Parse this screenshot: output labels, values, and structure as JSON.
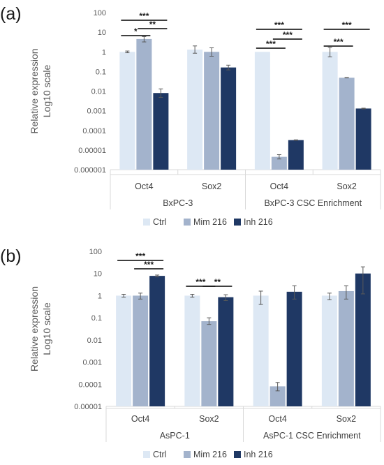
{
  "colors": {
    "ctrl": "#dde8f4",
    "mim": "#a3b3cc",
    "inh": "#1f3864",
    "axis": "#d9d9d9",
    "err": "#595959"
  },
  "chart_data": [
    {
      "panel": "(a)",
      "type": "bar",
      "log_scale": true,
      "ylabel": [
        "Relative expression",
        "Log10 scale"
      ],
      "ylim": [
        1e-06,
        100
      ],
      "yticks": [
        "100",
        "10",
        "1",
        "0.1",
        "0.01",
        "0.001",
        "0.0001",
        "0.00001",
        "0.000001"
      ],
      "categories": [
        "Oct4",
        "Sox2",
        "Oct4",
        "Sox2"
      ],
      "groups": [
        "BxPC-3",
        "BxPC-3 CSC Enrichment"
      ],
      "series": [
        {
          "name": "Ctrl",
          "values": [
            1,
            1.3,
            1,
            1
          ],
          "err_low": [
            0.9,
            0.85,
            1,
            0.55
          ],
          "err_high": [
            1.1,
            2.0,
            1,
            1.7
          ]
        },
        {
          "name": "Mim 216",
          "values": [
            4.5,
            1.0,
            4.5e-06,
            0.048
          ],
          "err_low": [
            3.2,
            0.6,
            3.5e-06,
            0.047
          ],
          "err_high": [
            6.0,
            1.6,
            5.8e-06,
            0.049
          ]
        },
        {
          "name": "Inh 216",
          "values": [
            0.008,
            0.16,
            3.2e-05,
            0.0013
          ],
          "err_low": [
            0.0048,
            0.12,
            3.1e-05,
            0.00125
          ],
          "err_high": [
            0.013,
            0.21,
            3.3e-05,
            0.00135
          ]
        }
      ],
      "significance": [
        {
          "label": "***",
          "from": [
            "Oct4",
            "Ctrl"
          ],
          "to": [
            "Oct4",
            "Inh 216"
          ]
        },
        {
          "label": "*",
          "from": [
            "Oct4",
            "Ctrl"
          ],
          "to": [
            "Oct4",
            "Mim 216"
          ]
        },
        {
          "label": "**",
          "from": [
            "Oct4",
            "Mim 216"
          ],
          "to": [
            "Oct4",
            "Inh 216"
          ]
        },
        {
          "label": "***",
          "from": [
            "Oct4 CSC",
            "Ctrl"
          ],
          "to": [
            "Oct4 CSC",
            "Inh 216"
          ]
        },
        {
          "label": "***",
          "from": [
            "Oct4 CSC",
            "Mim 216"
          ],
          "to": [
            "Oct4 CSC",
            "Inh 216"
          ]
        },
        {
          "label": "***",
          "from": [
            "Oct4 CSC",
            "Ctrl"
          ],
          "to": [
            "Oct4 CSC",
            "Mim 216"
          ]
        },
        {
          "label": "***",
          "from": [
            "Sox2 CSC",
            "Ctrl"
          ],
          "to": [
            "Sox2 CSC",
            "Inh 216"
          ]
        },
        {
          "label": "***",
          "from": [
            "Sox2 CSC",
            "Ctrl"
          ],
          "to": [
            "Sox2 CSC",
            "Mim 216"
          ]
        }
      ],
      "legend": [
        "Ctrl",
        "Mim 216",
        "Inh 216"
      ],
      "legend_position": "bottom"
    },
    {
      "panel": "(b)",
      "type": "bar",
      "log_scale": true,
      "ylabel": [
        "Relative expression",
        "Log10 scale"
      ],
      "ylim": [
        1e-05,
        100
      ],
      "yticks": [
        "100",
        "10",
        "1",
        "0.1",
        "0.01",
        "0.001",
        "0.0001",
        "0.00001"
      ],
      "categories": [
        "Oct4",
        "Sox2",
        "Oct4",
        "Sox2"
      ],
      "groups": [
        "AsPC-1",
        "AsPC-1 CSC Enrichment"
      ],
      "series": [
        {
          "name": "Ctrl",
          "values": [
            1,
            1,
            1,
            1
          ],
          "err_low": [
            0.85,
            0.85,
            0.4,
            0.65
          ],
          "err_high": [
            1.15,
            1.15,
            1.6,
            1.3
          ]
        },
        {
          "name": "Mim 216",
          "values": [
            1,
            0.07,
            8e-05,
            1.6
          ],
          "err_low": [
            0.7,
            0.05,
            5e-05,
            0.7
          ],
          "err_high": [
            1.3,
            0.1,
            0.00012,
            2.8
          ]
        },
        {
          "name": "Inh 216",
          "values": [
            7.8,
            0.85,
            1.5,
            10
          ],
          "err_low": [
            7.0,
            0.6,
            0.7,
            1.2
          ],
          "err_high": [
            8.5,
            1.1,
            2.8,
            20
          ]
        }
      ],
      "significance": [
        {
          "label": "***",
          "from": [
            "Oct4",
            "Ctrl"
          ],
          "to": [
            "Oct4",
            "Inh 216"
          ]
        },
        {
          "label": "***",
          "from": [
            "Oct4",
            "Mim 216"
          ],
          "to": [
            "Oct4",
            "Inh 216"
          ]
        },
        {
          "label": "***",
          "from": [
            "Sox2",
            "Ctrl"
          ],
          "to": [
            "Sox2",
            "Mim 216"
          ]
        },
        {
          "label": "**",
          "from": [
            "Sox2",
            "Mim 216"
          ],
          "to": [
            "Sox2",
            "Inh 216"
          ]
        }
      ],
      "legend": [
        "Ctrl",
        "Mim 216",
        "Inh 216"
      ],
      "legend_position": "bottom"
    }
  ]
}
